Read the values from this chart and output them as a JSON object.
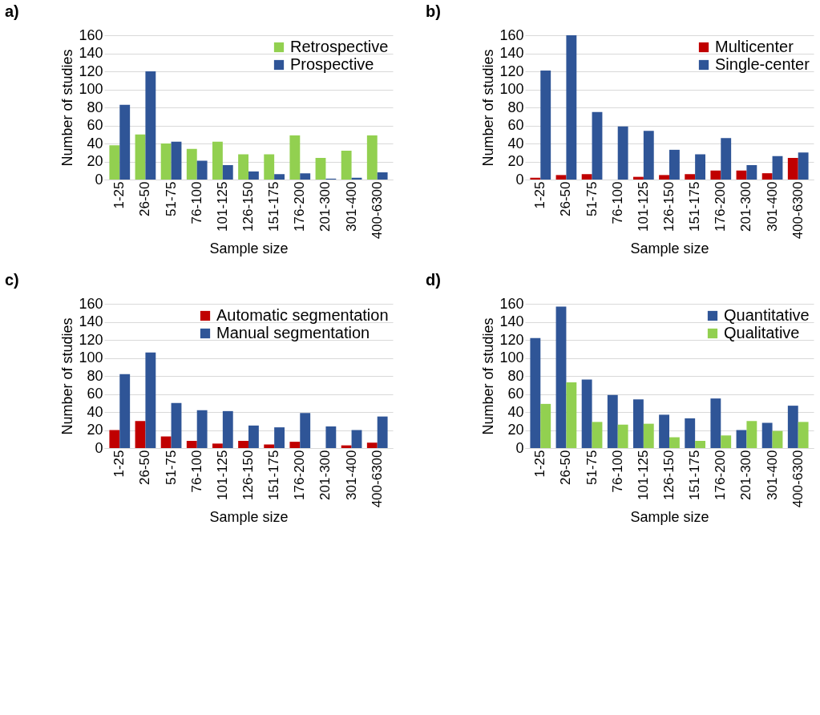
{
  "chart_data": [
    {
      "type": "bar",
      "title": "a)",
      "xlabel": "Sample size",
      "ylabel": "Number of studies",
      "categories": [
        "1-25",
        "26-50",
        "51-75",
        "76-100",
        "101-125",
        "126-150",
        "151-175",
        "176-200",
        "201-300",
        "301-400",
        "400-6300"
      ],
      "series": [
        {
          "name": "Retrospective",
          "color": "#92d050",
          "values": [
            38,
            50,
            40,
            34,
            42,
            28,
            28,
            49,
            24,
            32,
            49
          ]
        },
        {
          "name": "Prospective",
          "color": "#2f5597",
          "values": [
            83,
            120,
            42,
            21,
            16,
            9,
            6,
            7,
            1,
            2,
            8
          ]
        }
      ],
      "ylim": [
        0,
        160
      ],
      "yticks": [
        0,
        20,
        40,
        60,
        80,
        100,
        120,
        140,
        160
      ],
      "grid": "y",
      "legend": "top right"
    },
    {
      "type": "bar",
      "title": "b)",
      "xlabel": "Sample size",
      "ylabel": "Number of studies",
      "categories": [
        "1-25",
        "26-50",
        "51-75",
        "76-100",
        "101-125",
        "126-150",
        "151-175",
        "176-200",
        "201-300",
        "301-400",
        "400-6300"
      ],
      "series": [
        {
          "name": "Multicenter",
          "color": "#c00000",
          "values": [
            2,
            5,
            6,
            0,
            3,
            5,
            6,
            10,
            10,
            7,
            24
          ]
        },
        {
          "name": "Single-center",
          "color": "#2f5597",
          "values": [
            121,
            160,
            75,
            59,
            54,
            33,
            28,
            46,
            16,
            26,
            30
          ]
        }
      ],
      "ylim": [
        0,
        160
      ],
      "yticks": [
        0,
        20,
        40,
        60,
        80,
        100,
        120,
        140,
        160
      ],
      "grid": "y",
      "legend": "top right"
    },
    {
      "type": "bar",
      "title": "c)",
      "xlabel": "Sample size",
      "ylabel": "Number of studies",
      "categories": [
        "1-25",
        "26-50",
        "51-75",
        "76-100",
        "101-125",
        "126-150",
        "151-175",
        "176-200",
        "201-300",
        "301-400",
        "400-6300"
      ],
      "series": [
        {
          "name": "Automatic segmentation",
          "color": "#c00000",
          "values": [
            20,
            30,
            13,
            8,
            5,
            8,
            4,
            7,
            0,
            3,
            6
          ]
        },
        {
          "name": "Manual segmentation",
          "color": "#2f5597",
          "values": [
            82,
            106,
            50,
            42,
            41,
            25,
            23,
            39,
            24,
            20,
            35
          ]
        }
      ],
      "ylim": [
        0,
        160
      ],
      "yticks": [
        0,
        20,
        40,
        60,
        80,
        100,
        120,
        140,
        160
      ],
      "grid": "y",
      "legend": "top right"
    },
    {
      "type": "bar",
      "title": "d)",
      "xlabel": "Sample size",
      "ylabel": "Number of studies",
      "categories": [
        "1-25",
        "26-50",
        "51-75",
        "76-100",
        "101-125",
        "126-150",
        "151-175",
        "176-200",
        "201-300",
        "301-400",
        "400-6300"
      ],
      "series": [
        {
          "name": "Quantitative",
          "color": "#2f5597",
          "values": [
            122,
            157,
            76,
            59,
            54,
            37,
            33,
            55,
            20,
            28,
            47
          ]
        },
        {
          "name": "Qualitative",
          "color": "#92d050",
          "values": [
            49,
            73,
            29,
            26,
            27,
            12,
            8,
            14,
            30,
            19,
            29
          ]
        }
      ],
      "ylim": [
        0,
        160
      ],
      "yticks": [
        0,
        20,
        40,
        60,
        80,
        100,
        120,
        140,
        160
      ],
      "grid": "y",
      "legend": "top right"
    }
  ]
}
